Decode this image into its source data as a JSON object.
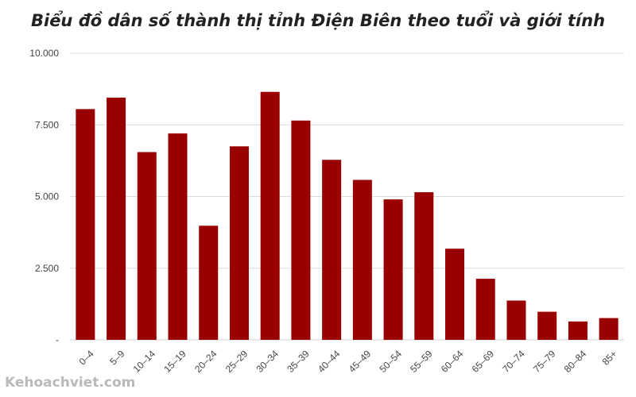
{
  "chart_data": {
    "type": "bar",
    "title": "Biểu đồ dân số thành thị tỉnh Điện Biên theo tuổi và giới tính",
    "xlabel": "",
    "ylabel": "",
    "categories": [
      "0–4",
      "5–9",
      "10–14",
      "15–19",
      "20–24",
      "25–29",
      "30–34",
      "35–39",
      "40–44",
      "45–49",
      "50–54",
      "55–59",
      "60–64",
      "65–69",
      "70–74",
      "75–79",
      "80–84",
      "85+"
    ],
    "values": [
      8050,
      8450,
      6550,
      7200,
      3980,
      6750,
      8650,
      7650,
      6280,
      5580,
      4900,
      5150,
      3180,
      2130,
      1370,
      980,
      640,
      760
    ],
    "ylim": [
      0,
      10000
    ],
    "yticks": [
      0,
      2500,
      5000,
      7500,
      10000
    ],
    "ytick_labels": [
      "-",
      "2.500",
      "5.000",
      "7.500",
      "10.000"
    ],
    "bar_color": "#990000",
    "grid": true,
    "legend": "none"
  },
  "watermark": "Kehoachviet.com"
}
